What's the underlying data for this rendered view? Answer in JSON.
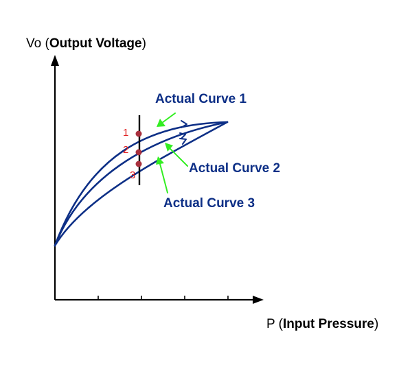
{
  "axes": {
    "y_label_prefix": "Vo (",
    "y_label_bold": "Output Voltage",
    "y_label_suffix": ")",
    "x_label_prefix": "P (",
    "x_label_bold": "Input Pressure",
    "x_label_suffix": ")"
  },
  "curves": [
    {
      "label": "Actual Curve 1"
    },
    {
      "label": "Actual Curve 2"
    },
    {
      "label": "Actual Curve 3"
    }
  ],
  "points": [
    "1",
    "2",
    "3"
  ],
  "colors": {
    "curve": "#0d2f86",
    "pointer": "#33ee22",
    "point_marker": "#a8303d",
    "point_number": "#e02020",
    "axis": "#000000"
  }
}
